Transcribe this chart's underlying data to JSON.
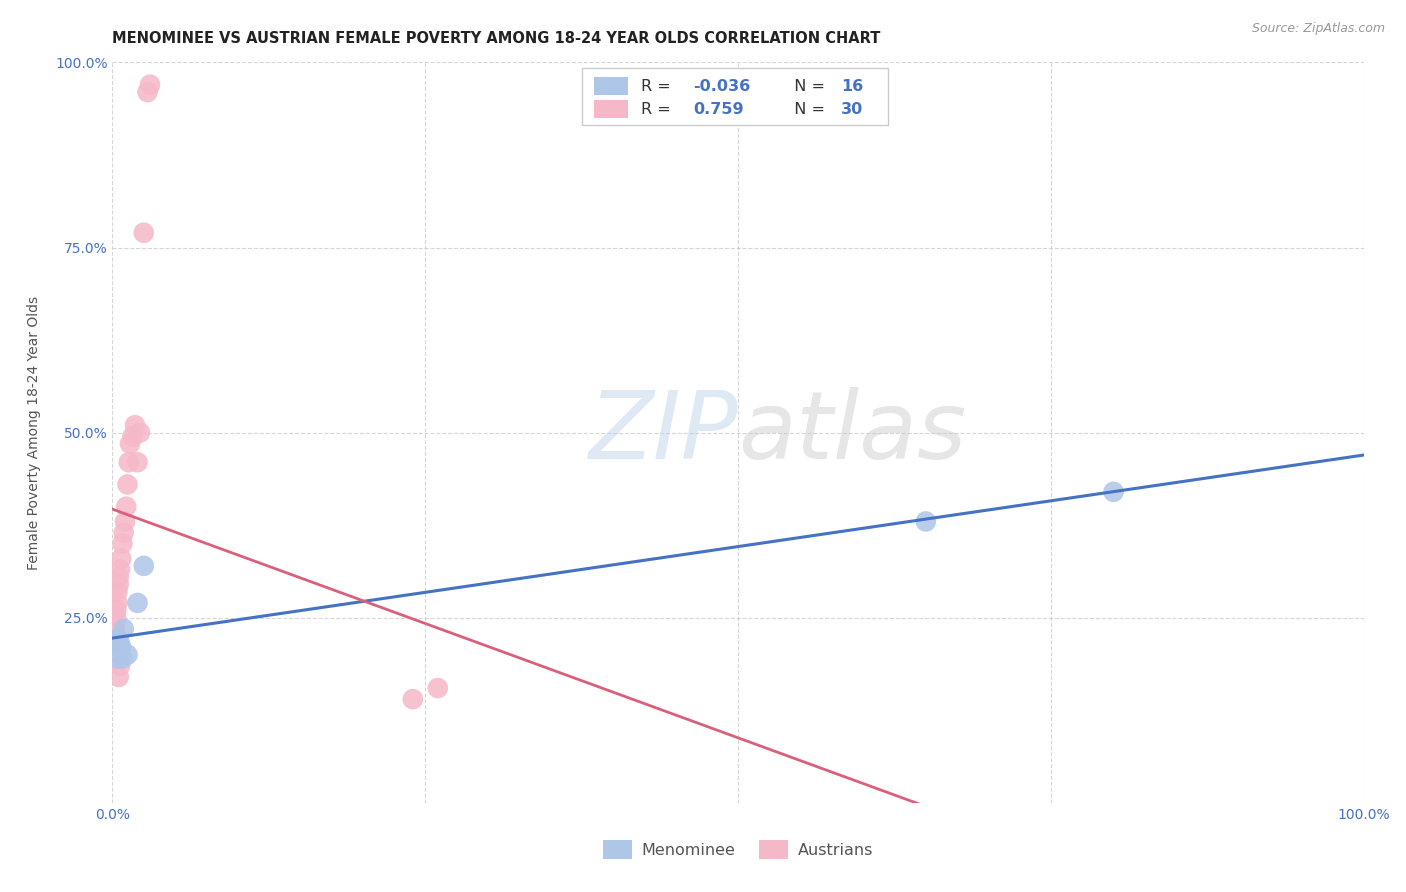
{
  "title": "MENOMINEE VS AUSTRIAN FEMALE POVERTY AMONG 18-24 YEAR OLDS CORRELATION CHART",
  "source": "Source: ZipAtlas.com",
  "ylabel": "Female Poverty Among 18-24 Year Olds",
  "xlim": [
    0,
    1.0
  ],
  "ylim": [
    0,
    1.0
  ],
  "menominee_R": "-0.036",
  "menominee_N": "16",
  "austrians_R": "0.759",
  "austrians_N": "30",
  "menominee_color": "#aec6e8",
  "austrians_color": "#f5b8c8",
  "trendline_menominee_color": "#4472c4",
  "trendline_austrians_color": "#d9607a",
  "watermark_zip": "ZIP",
  "watermark_atlas": "atlas",
  "grid_color": "#cccccc",
  "background_color": "#ffffff",
  "title_fontsize": 10.5,
  "axis_label_fontsize": 10,
  "tick_fontsize": 10,
  "menominee_points_x": [
    0.001,
    0.002,
    0.003,
    0.004,
    0.005,
    0.006,
    0.007,
    0.008,
    0.009,
    0.012,
    0.02,
    0.025,
    0.003,
    0.65,
    0.8,
    0.004
  ],
  "menominee_points_y": [
    0.22,
    0.215,
    0.22,
    0.21,
    0.22,
    0.215,
    0.21,
    0.195,
    0.235,
    0.2,
    0.27,
    0.32,
    0.22,
    0.38,
    0.42,
    0.195
  ],
  "austrians_points_x": [
    0.001,
    0.001,
    0.002,
    0.002,
    0.003,
    0.003,
    0.004,
    0.004,
    0.005,
    0.005,
    0.006,
    0.007,
    0.008,
    0.009,
    0.01,
    0.011,
    0.012,
    0.013,
    0.014,
    0.016,
    0.018,
    0.02,
    0.022,
    0.025,
    0.028,
    0.03,
    0.24,
    0.26,
    0.005,
    0.006
  ],
  "austrians_points_y": [
    0.215,
    0.225,
    0.235,
    0.24,
    0.25,
    0.26,
    0.27,
    0.285,
    0.295,
    0.305,
    0.315,
    0.33,
    0.35,
    0.365,
    0.38,
    0.4,
    0.43,
    0.46,
    0.485,
    0.495,
    0.51,
    0.46,
    0.5,
    0.77,
    0.96,
    0.97,
    0.14,
    0.155,
    0.17,
    0.185
  ]
}
